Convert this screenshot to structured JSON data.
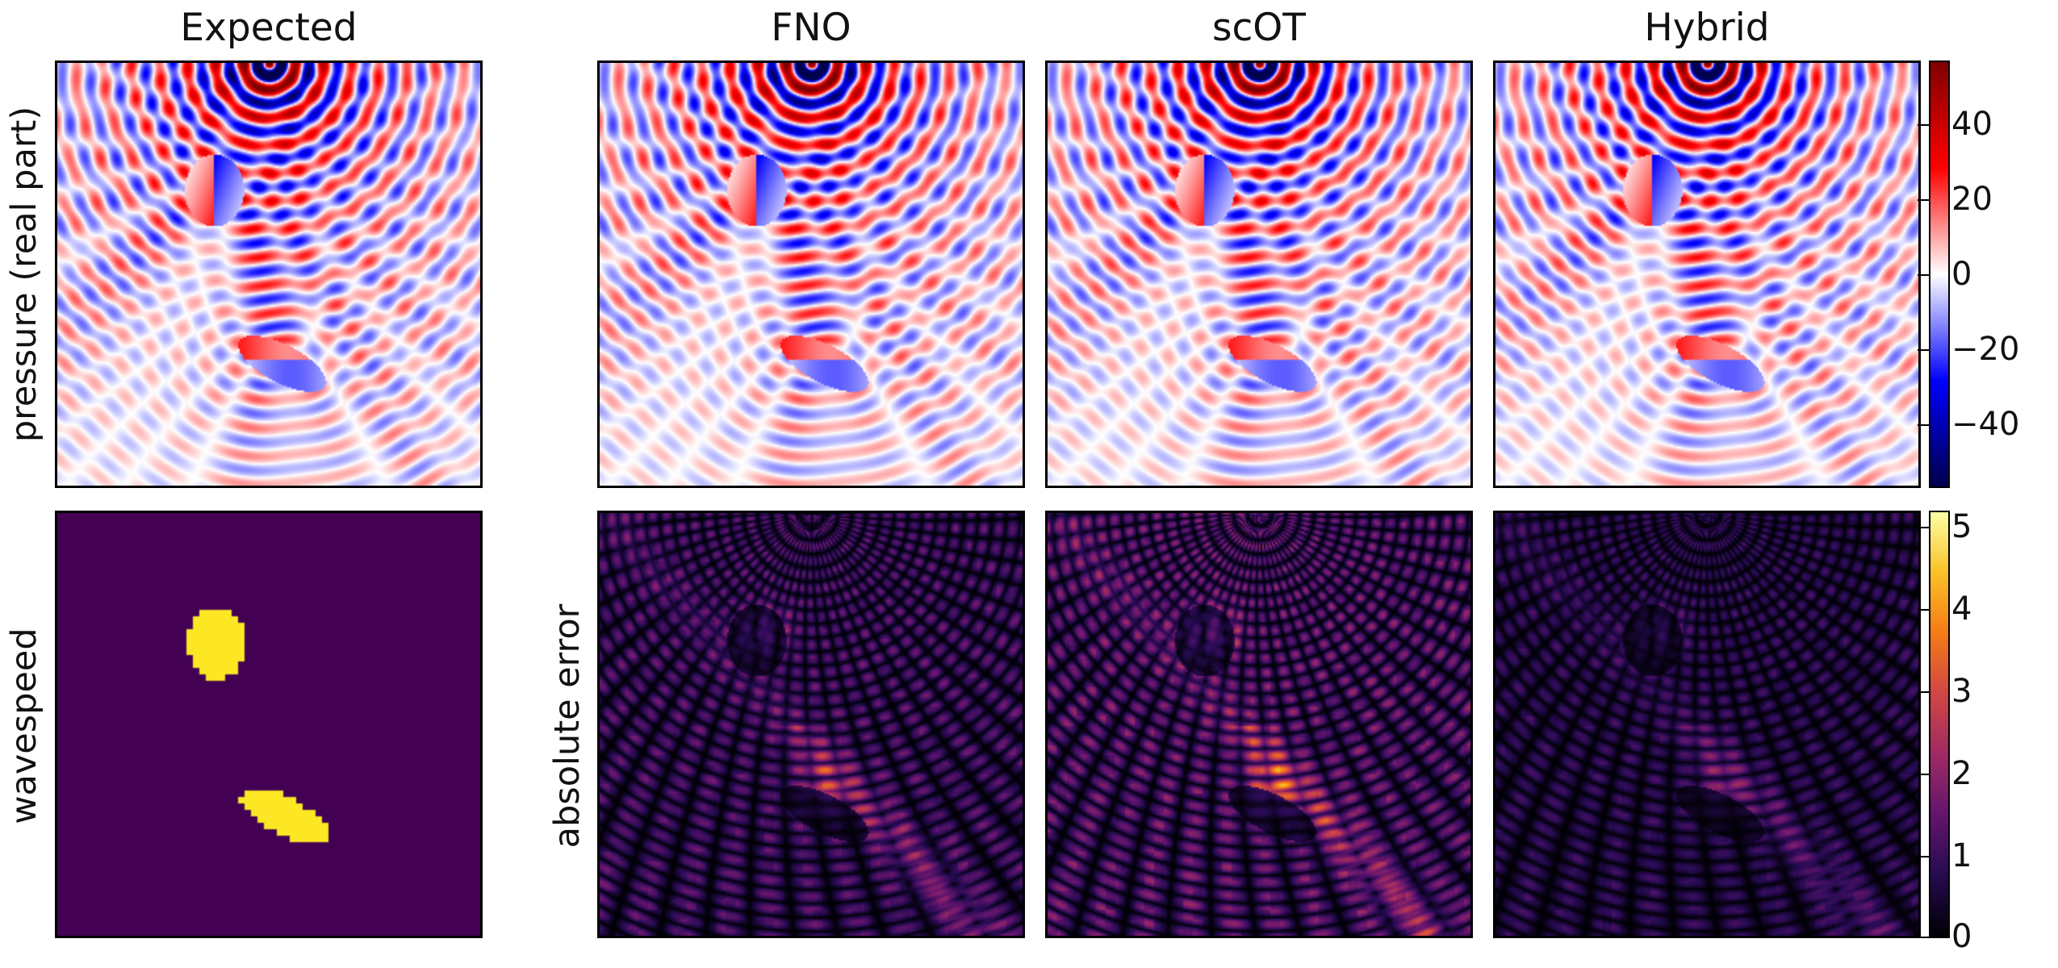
{
  "columns": [
    "Expected",
    "FNO",
    "scOT",
    "Hybrid"
  ],
  "rows": {
    "top_label": "pressure (real part)",
    "bottom_left_label": "wavespeed",
    "bottom_right_label": "absolute error"
  },
  "chart_data": [
    {
      "type": "heatmap",
      "title": "",
      "quantity": "pressure (real part)",
      "panels": [
        "Expected",
        "FNO",
        "scOT",
        "Hybrid"
      ],
      "colormap": "seismic",
      "color_range": [
        -57,
        57
      ],
      "colorbar_ticks": [
        40,
        20,
        0,
        -20,
        -40
      ],
      "colorbar_tick_labels": [
        "40",
        "20",
        "0",
        "−20",
        "−40"
      ],
      "source_position": "top-center"
    },
    {
      "type": "heatmap",
      "title": "",
      "quantity": "wavespeed",
      "panels": [
        "Expected"
      ],
      "colors": {
        "background": "#440154",
        "scatterer": "#fde725"
      },
      "regions": [
        "upper scatterer",
        "lower scatterer"
      ]
    },
    {
      "type": "heatmap",
      "title": "",
      "quantity": "absolute error",
      "panels": [
        "FNO",
        "scOT",
        "Hybrid"
      ],
      "colormap": "inferno",
      "color_range": [
        0,
        5.2
      ],
      "colorbar_ticks": [
        5,
        4,
        3,
        2,
        1,
        0
      ],
      "colorbar_tick_labels": [
        "5",
        "4",
        "3",
        "2",
        "1",
        "0"
      ],
      "relative_error_intensity": {
        "FNO": 1.0,
        "scOT": 1.25,
        "Hybrid": 0.7
      }
    }
  ]
}
